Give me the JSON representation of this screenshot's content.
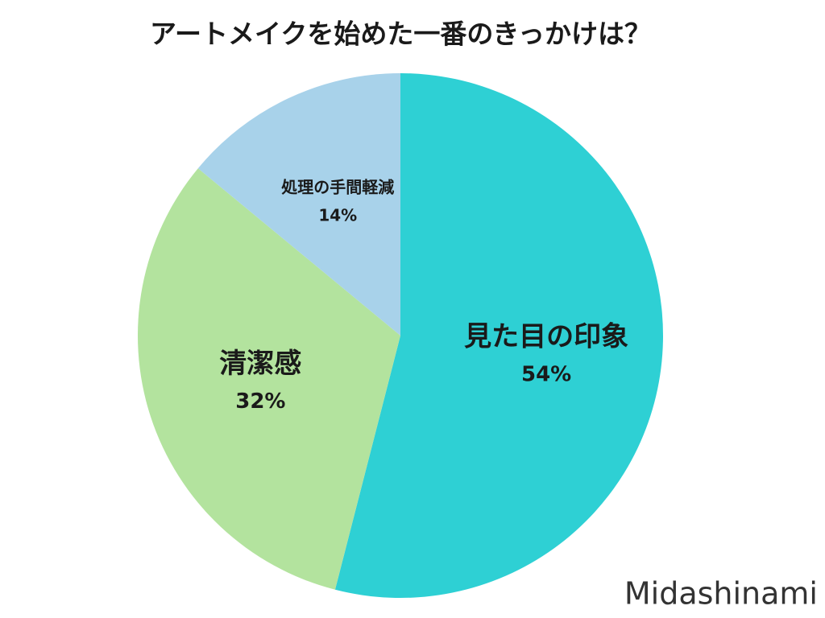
{
  "chart_data": {
    "type": "pie",
    "title": "アートメイクを始めた一番のきっかけは？",
    "categories": [
      "見た目の印象",
      "清潔感",
      "処理の手間軽減"
    ],
    "values": [
      54,
      32,
      14
    ],
    "value_labels": [
      "54%",
      "32%",
      "14%"
    ],
    "colors": [
      "#2ed0d4",
      "#b3e39e",
      "#a8d2ea"
    ],
    "watermark": "Midashinami"
  }
}
